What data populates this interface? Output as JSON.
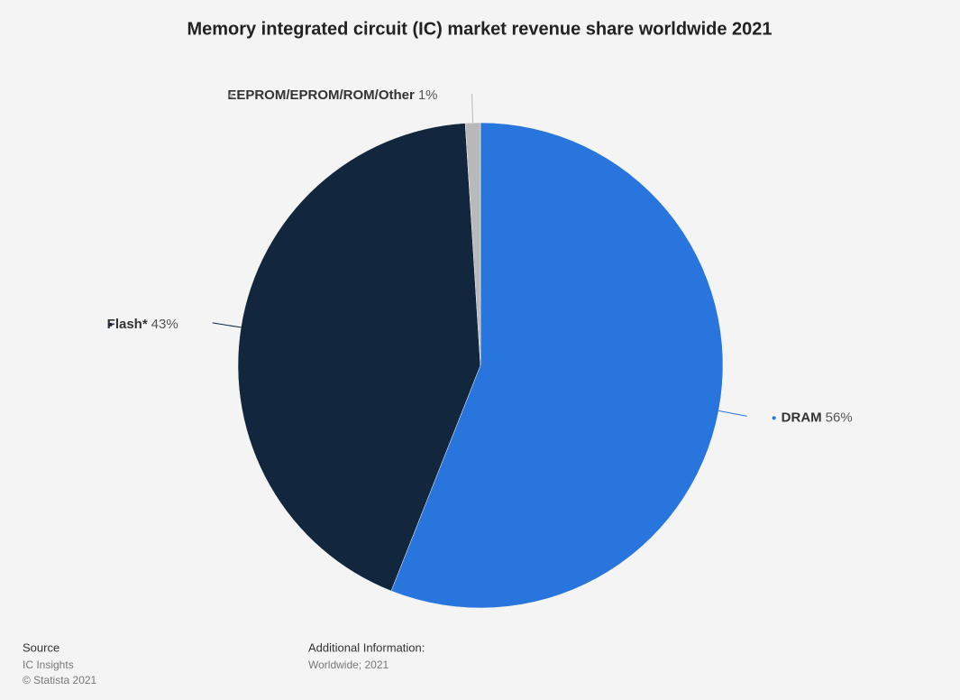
{
  "chart_data": {
    "type": "pie",
    "title": "Memory integrated circuit (IC) market revenue share worldwide 2021",
    "categories": [
      "DRAM",
      "Flash*",
      "EEPROM/EPROM/ROM/Other"
    ],
    "values": [
      56,
      43,
      1
    ],
    "value_labels": [
      "56%",
      "43%",
      "1%"
    ],
    "colors": [
      "#2876dd",
      "#12263e",
      "#b9b9b9"
    ]
  },
  "footer": {
    "source_heading": "Source",
    "source": "IC Insights",
    "copyright": "© Statista 2021",
    "info_heading": "Additional Information:",
    "info": "Worldwide; 2021"
  }
}
